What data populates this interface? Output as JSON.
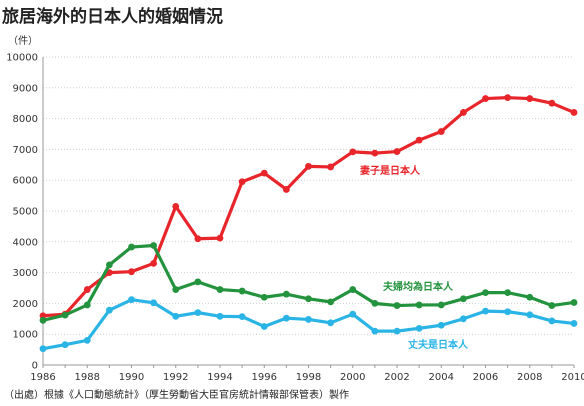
{
  "title": "旅居海外的日本人的婚姻情況",
  "source": "（出處）根據《人口動態統計》（厚生勞動省大臣官房統計情報部保管表）製作",
  "chart_data": {
    "type": "line",
    "unit": "（件）",
    "x": [
      1986,
      1987,
      1988,
      1989,
      1990,
      1991,
      1992,
      1993,
      1994,
      1995,
      1996,
      1997,
      1998,
      1999,
      2000,
      2001,
      2002,
      2003,
      2004,
      2005,
      2006,
      2007,
      2008,
      2009,
      2010
    ],
    "ylim": [
      0,
      10000
    ],
    "yticks": [
      0,
      1000,
      2000,
      3000,
      4000,
      5000,
      6000,
      7000,
      8000,
      9000,
      10000
    ],
    "xticks": [
      1986,
      1988,
      1990,
      1992,
      1994,
      1996,
      1998,
      2000,
      2002,
      2004,
      2006,
      2008,
      2010
    ],
    "grid": true,
    "series": [
      {
        "name": "妻子是日本人",
        "color": "#e8252b",
        "values": [
          1600,
          1650,
          2450,
          3000,
          3030,
          3300,
          5150,
          4100,
          4120,
          5950,
          6230,
          5700,
          6450,
          6430,
          6920,
          6880,
          6930,
          7300,
          7580,
          8200,
          8650,
          8680,
          8650,
          8500,
          8200
        ]
      },
      {
        "name": "夫婦均為日本人",
        "color": "#23933d",
        "values": [
          1450,
          1620,
          1950,
          3250,
          3830,
          3880,
          2450,
          2700,
          2450,
          2400,
          2200,
          2300,
          2150,
          2050,
          2450,
          2000,
          1930,
          1950,
          1950,
          2150,
          2350,
          2350,
          2200,
          1930,
          2030
        ]
      },
      {
        "name": "丈夫是日本人",
        "color": "#2ab4e6",
        "values": [
          530,
          660,
          800,
          1780,
          2120,
          2020,
          1580,
          1700,
          1580,
          1570,
          1250,
          1520,
          1480,
          1370,
          1650,
          1100,
          1100,
          1190,
          1290,
          1500,
          1750,
          1730,
          1630,
          1430,
          1350
        ]
      }
    ]
  }
}
